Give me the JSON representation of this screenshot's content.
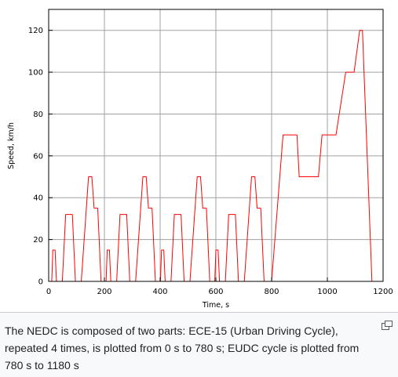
{
  "chart_data": {
    "type": "line",
    "xlabel": "Time, s",
    "ylabel": "Speed, km/h",
    "xlim": [
      0,
      1200
    ],
    "ylim": [
      0,
      130
    ],
    "xticks": [
      0,
      200,
      400,
      600,
      800,
      1000,
      1200
    ],
    "yticks": [
      0,
      20,
      40,
      60,
      80,
      100,
      120
    ],
    "grid": true,
    "series": [
      {
        "color": "#ff0000",
        "points": [
          [
            0,
            0
          ],
          [
            11,
            0
          ],
          [
            15,
            15
          ],
          [
            23,
            15
          ],
          [
            28,
            0
          ],
          [
            49,
            0
          ],
          [
            61,
            32
          ],
          [
            85,
            32
          ],
          [
            96,
            0
          ],
          [
            117,
            0
          ],
          [
            143,
            50
          ],
          [
            155,
            50
          ],
          [
            163,
            35
          ],
          [
            176,
            35
          ],
          [
            188,
            0
          ],
          [
            195,
            0
          ],
          [
            206,
            0
          ],
          [
            210,
            15
          ],
          [
            218,
            15
          ],
          [
            223,
            0
          ],
          [
            244,
            0
          ],
          [
            256,
            32
          ],
          [
            280,
            32
          ],
          [
            291,
            0
          ],
          [
            312,
            0
          ],
          [
            338,
            50
          ],
          [
            350,
            50
          ],
          [
            358,
            35
          ],
          [
            371,
            35
          ],
          [
            383,
            0
          ],
          [
            390,
            0
          ],
          [
            401,
            0
          ],
          [
            405,
            15
          ],
          [
            413,
            15
          ],
          [
            418,
            0
          ],
          [
            439,
            0
          ],
          [
            451,
            32
          ],
          [
            475,
            32
          ],
          [
            486,
            0
          ],
          [
            507,
            0
          ],
          [
            533,
            50
          ],
          [
            545,
            50
          ],
          [
            553,
            35
          ],
          [
            566,
            35
          ],
          [
            578,
            0
          ],
          [
            585,
            0
          ],
          [
            596,
            0
          ],
          [
            600,
            15
          ],
          [
            608,
            15
          ],
          [
            613,
            0
          ],
          [
            634,
            0
          ],
          [
            646,
            32
          ],
          [
            670,
            32
          ],
          [
            681,
            0
          ],
          [
            702,
            0
          ],
          [
            728,
            50
          ],
          [
            740,
            50
          ],
          [
            748,
            35
          ],
          [
            761,
            35
          ],
          [
            773,
            0
          ],
          [
            780,
            0
          ],
          [
            800,
            0
          ],
          [
            841,
            70
          ],
          [
            891,
            70
          ],
          [
            899,
            50
          ],
          [
            968,
            50
          ],
          [
            981,
            70
          ],
          [
            1031,
            70
          ],
          [
            1066,
            100
          ],
          [
            1096,
            100
          ],
          [
            1116,
            120
          ],
          [
            1126,
            120
          ],
          [
            1160,
            0
          ],
          [
            1180,
            0
          ]
        ]
      }
    ]
  },
  "caption": {
    "text": "The NEDC is composed of two parts: ECE-15 (Urban Driving Cycle), repeated 4 times, is plotted from 0 s to 780 s; EUDC cycle is plotted from 780 s to 1180 s"
  },
  "icons": {
    "enlarge": "enlarge-icon"
  }
}
